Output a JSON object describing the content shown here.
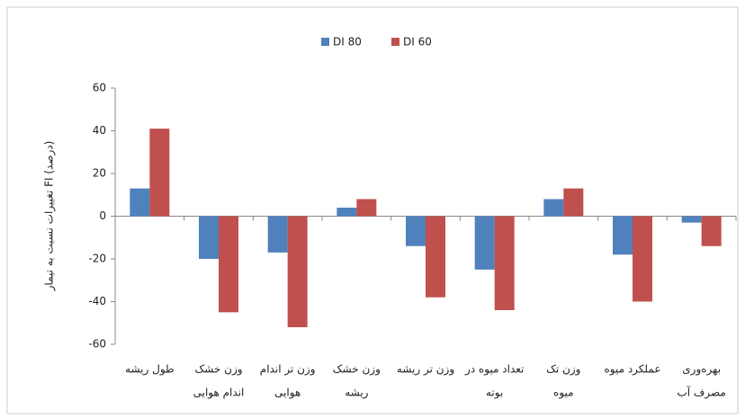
{
  "chart_data": {
    "type": "bar",
    "y_label": "تغییرات نسبت به تیمار FI (درصد)",
    "categories": [
      [
        "طول ریشه"
      ],
      [
        "وزن خشک",
        "اندام هوایی"
      ],
      [
        "وزن تر اندام",
        "هوایی"
      ],
      [
        "وزن خشک",
        "ریشه"
      ],
      [
        "وزن تر ریشه"
      ],
      [
        "تعداد میوه در",
        "بوته"
      ],
      [
        "وزن تک",
        "میوه"
      ],
      [
        "عملکرد میوه"
      ],
      [
        "بهره‌وری",
        "مصرف آب"
      ]
    ],
    "series": [
      {
        "name": "DI 80",
        "color": "#4f81bd",
        "values": [
          13,
          -20,
          -17,
          4,
          -14,
          -25,
          8,
          -18,
          -3
        ]
      },
      {
        "name": "DI 60",
        "color": "#c0504d",
        "values": [
          41,
          -45,
          -52,
          8,
          -38,
          -44,
          13,
          -40,
          -14
        ]
      }
    ],
    "ylim": [
      -60,
      60
    ],
    "yticks": [
      -60,
      -40,
      -20,
      0,
      20,
      40,
      60
    ],
    "legend": "top"
  }
}
